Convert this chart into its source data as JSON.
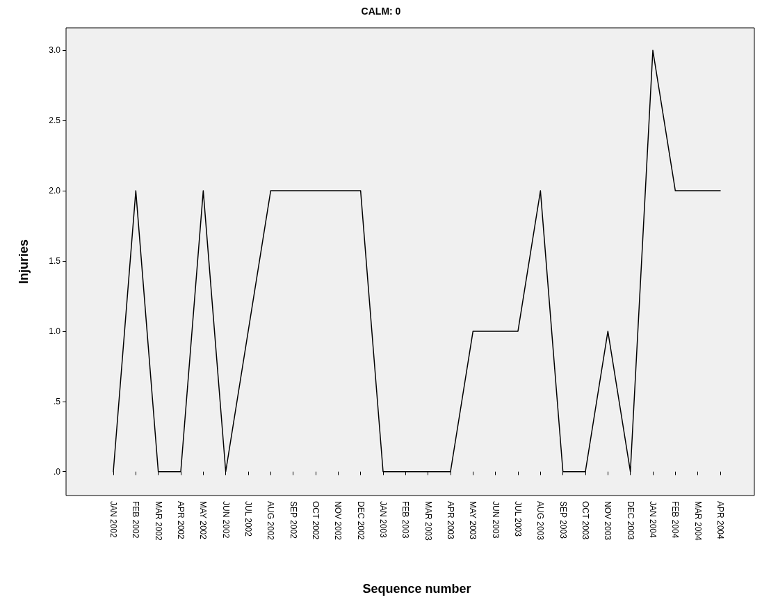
{
  "chart_data": {
    "type": "line",
    "title": "CALM: 0",
    "xlabel": "Sequence number",
    "ylabel": "Injuries",
    "categories": [
      "JAN 2002",
      "FEB 2002",
      "MAR 2002",
      "APR 2002",
      "MAY 2002",
      "JUN 2002",
      "JUL 2002",
      "AUG 2002",
      "SEP 2002",
      "OCT 2002",
      "NOV 2002",
      "DEC 2002",
      "JAN 2003",
      "FEB 2003",
      "MAR 2003",
      "APR 2003",
      "MAY 2003",
      "JUN 2003",
      "JUL 2003",
      "AUG 2003",
      "SEP 2003",
      "OCT 2003",
      "NOV 2003",
      "DEC 2003",
      "JAN 2004",
      "FEB 2004",
      "MAR 2004",
      "APR 2004"
    ],
    "series": [
      {
        "color": "#000000",
        "values": [
          0,
          2,
          0,
          0,
          2,
          0,
          1,
          2,
          2,
          2,
          2,
          2,
          0,
          0,
          0,
          0,
          1,
          1,
          1,
          2,
          0,
          0,
          1,
          0,
          3,
          2,
          2,
          2
        ]
      }
    ],
    "ylim": [
      -0.17,
      3.16
    ],
    "yticks": [
      {
        "value": 0,
        "label": ".0"
      },
      {
        "value": 0.5,
        "label": ".5"
      },
      {
        "value": 1,
        "label": "1.0"
      },
      {
        "value": 1.5,
        "label": "1.5"
      },
      {
        "value": 2,
        "label": "2.0"
      },
      {
        "value": 2.5,
        "label": "2.5"
      },
      {
        "value": 3,
        "label": "3.0"
      }
    ],
    "grid": false,
    "marker": "none",
    "line_style": "solid"
  }
}
